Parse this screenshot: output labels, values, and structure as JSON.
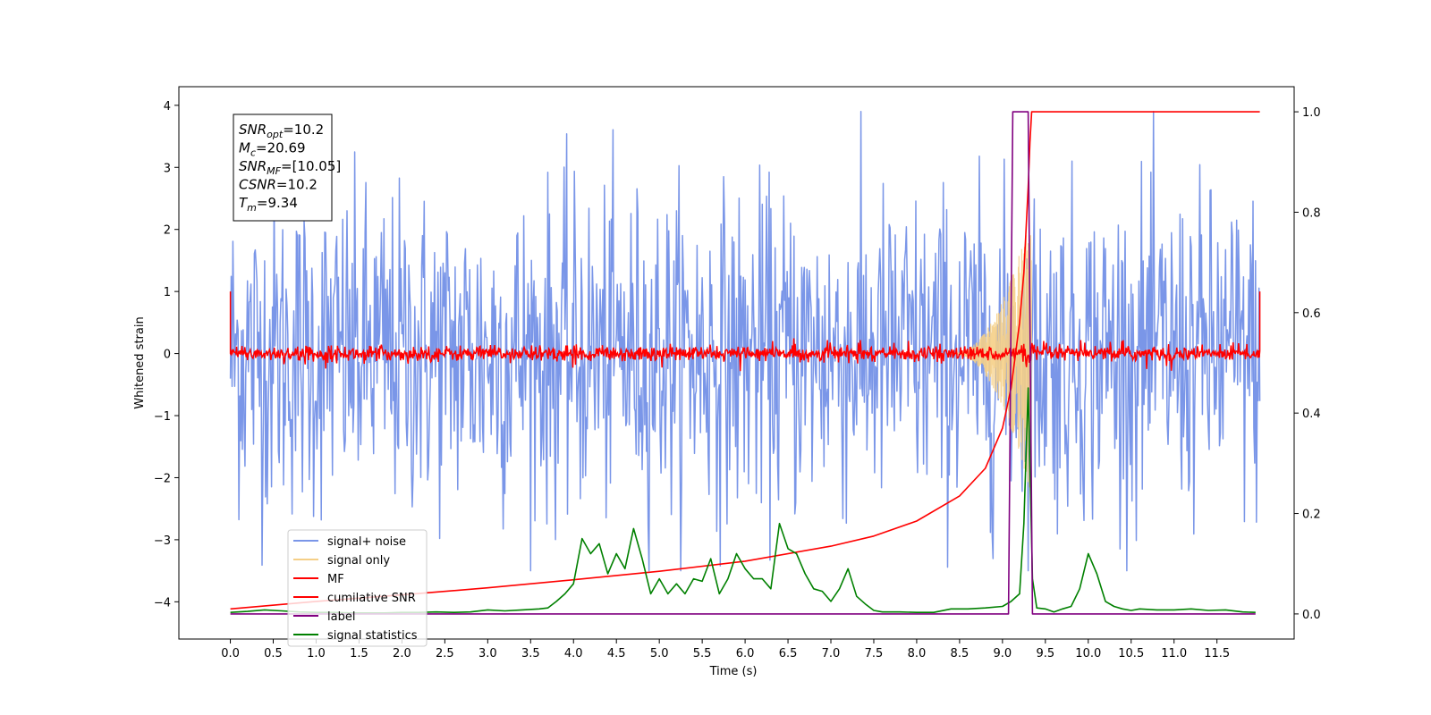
{
  "chart_data": {
    "type": "line",
    "title": "",
    "xlabel": "Time (s)",
    "ylabel": "Whitened strain",
    "y2label": "",
    "xlim": [
      -0.6,
      12.4
    ],
    "ylim": [
      -4.6,
      4.3
    ],
    "y2lim": [
      -0.05,
      1.05
    ],
    "x_ticks": [
      0.0,
      0.5,
      1.0,
      1.5,
      2.0,
      2.5,
      3.0,
      3.5,
      4.0,
      4.5,
      5.0,
      5.5,
      6.0,
      6.5,
      7.0,
      7.5,
      8.0,
      8.5,
      9.0,
      9.5,
      10.0,
      10.5,
      11.0,
      11.5
    ],
    "x_tick_labels": [
      "0.0",
      "0.5",
      "1.0",
      "1.5",
      "2.0",
      "2.5",
      "3.0",
      "3.5",
      "4.0",
      "4.5",
      "5.0",
      "5.5",
      "6.0",
      "6.5",
      "7.0",
      "7.5",
      "8.0",
      "8.5",
      "9.0",
      "9.5",
      "10.0",
      "10.5",
      "11.0",
      "11.5"
    ],
    "y_ticks": [
      4,
      3,
      2,
      1,
      0,
      -1,
      -2,
      -3,
      -4
    ],
    "y_tick_labels": [
      "4",
      "3",
      "2",
      "1",
      "0",
      "−1",
      "−2",
      "−3",
      "−4"
    ],
    "y2_ticks": [
      1.0,
      0.8,
      0.6,
      0.4,
      0.2,
      0.0
    ],
    "y2_tick_labels": [
      "1.0",
      "0.8",
      "0.6",
      "0.4",
      "0.2",
      "0.0"
    ],
    "grid": false,
    "legend_position": "lower-left",
    "annotation": {
      "lines": [
        {
          "base": "SNR",
          "sub": "opt",
          "value": "=10.2"
        },
        {
          "base": "M",
          "sub": "c",
          "value": "=20.69"
        },
        {
          "base": "SNR",
          "sub": "MF",
          "value": "=[10.05]"
        },
        {
          "base": "CSNR",
          "sub": "",
          "value": "=10.2"
        },
        {
          "base": "T",
          "sub": "m",
          "value": "=9.34"
        }
      ]
    },
    "series": [
      {
        "name": "signal+ noise",
        "axis": "left",
        "color": "#7a96e8",
        "style": "noise",
        "x_range": [
          0.0,
          12.0
        ],
        "amplitude_rms": 1.3,
        "peak_max": 3.9,
        "peak_min": -3.5
      },
      {
        "name": "signal only",
        "axis": "left",
        "color": "#f5cf87",
        "style": "chirp",
        "x_range": [
          8.4,
          9.34
        ],
        "amplitude_max": 2.3
      },
      {
        "name": "MF",
        "axis": "left",
        "color": "#ff0000",
        "style": "noise",
        "x_range": [
          0.0,
          12.0
        ],
        "amplitude_rms": 0.06,
        "edge_value": 1.0
      },
      {
        "name": "cumilative SNR",
        "axis": "right",
        "color": "#ff0000",
        "x": [
          0.0,
          1.0,
          2.0,
          3.0,
          4.0,
          5.0,
          6.0,
          7.0,
          7.5,
          8.0,
          8.5,
          8.8,
          9.0,
          9.1,
          9.2,
          9.25,
          9.3,
          9.32,
          9.34,
          12.0
        ],
        "y": [
          0.01,
          0.025,
          0.038,
          0.052,
          0.068,
          0.085,
          0.105,
          0.135,
          0.155,
          0.185,
          0.235,
          0.29,
          0.37,
          0.45,
          0.58,
          0.68,
          0.85,
          0.94,
          1.0,
          1.0
        ]
      },
      {
        "name": "label",
        "axis": "right",
        "color": "#800080",
        "x": [
          0.0,
          9.07,
          9.12,
          9.3,
          9.35,
          11.95
        ],
        "y": [
          0.0,
          0.0,
          1.0,
          1.0,
          0.0,
          0.0
        ]
      },
      {
        "name": "signal statistics",
        "axis": "right",
        "color": "#008000",
        "x": [
          0.0,
          0.2,
          0.4,
          0.6,
          0.8,
          1.0,
          1.2,
          1.4,
          1.6,
          1.8,
          2.0,
          2.2,
          2.4,
          2.6,
          2.8,
          3.0,
          3.2,
          3.4,
          3.6,
          3.7,
          3.8,
          3.9,
          4.0,
          4.1,
          4.2,
          4.3,
          4.4,
          4.5,
          4.6,
          4.7,
          4.8,
          4.9,
          5.0,
          5.1,
          5.2,
          5.3,
          5.4,
          5.5,
          5.6,
          5.7,
          5.8,
          5.9,
          6.0,
          6.1,
          6.2,
          6.3,
          6.4,
          6.5,
          6.6,
          6.7,
          6.8,
          6.9,
          7.0,
          7.1,
          7.2,
          7.3,
          7.4,
          7.5,
          7.6,
          7.8,
          8.0,
          8.2,
          8.4,
          8.6,
          8.8,
          9.0,
          9.1,
          9.2,
          9.25,
          9.3,
          9.35,
          9.4,
          9.5,
          9.6,
          9.7,
          9.8,
          9.9,
          10.0,
          10.1,
          10.2,
          10.3,
          10.4,
          10.5,
          10.6,
          10.8,
          11.0,
          11.2,
          11.4,
          11.6,
          11.8,
          11.95
        ],
        "y": [
          0.003,
          0.005,
          0.008,
          0.006,
          0.004,
          0.003,
          0.003,
          0.002,
          0.002,
          0.002,
          0.003,
          0.003,
          0.004,
          0.003,
          0.004,
          0.008,
          0.006,
          0.008,
          0.01,
          0.012,
          0.025,
          0.04,
          0.06,
          0.15,
          0.12,
          0.14,
          0.08,
          0.12,
          0.09,
          0.17,
          0.11,
          0.04,
          0.07,
          0.04,
          0.06,
          0.04,
          0.07,
          0.065,
          0.11,
          0.04,
          0.07,
          0.12,
          0.09,
          0.07,
          0.07,
          0.05,
          0.18,
          0.13,
          0.12,
          0.08,
          0.05,
          0.045,
          0.025,
          0.05,
          0.09,
          0.035,
          0.02,
          0.007,
          0.004,
          0.004,
          0.003,
          0.003,
          0.01,
          0.01,
          0.012,
          0.015,
          0.025,
          0.04,
          0.18,
          0.45,
          0.07,
          0.012,
          0.01,
          0.004,
          0.01,
          0.015,
          0.05,
          0.12,
          0.08,
          0.025,
          0.015,
          0.01,
          0.007,
          0.01,
          0.008,
          0.008,
          0.01,
          0.007,
          0.008,
          0.004,
          0.003
        ]
      }
    ]
  }
}
